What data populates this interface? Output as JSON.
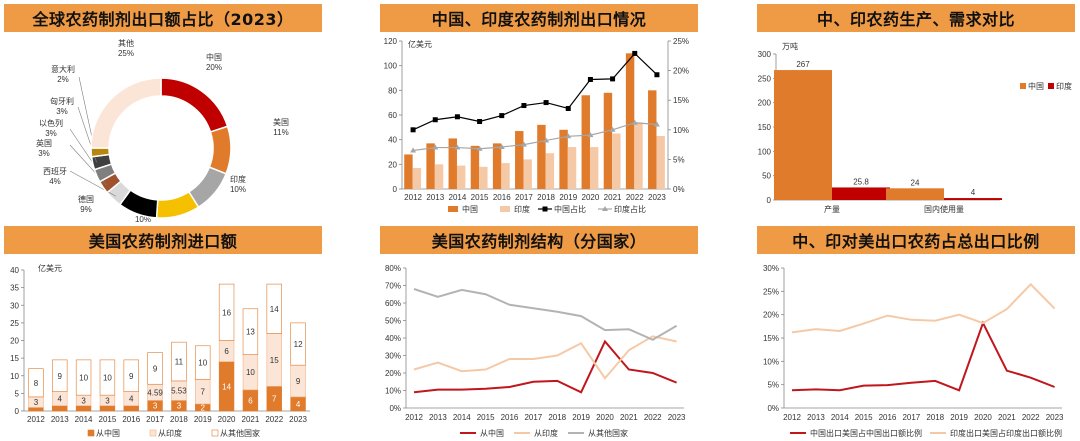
{
  "colors": {
    "china": "#e07b2c",
    "india": "#f6c9a6",
    "red": "#c0161c",
    "gray": "#a6a6a6",
    "banner": "#ef9a45"
  },
  "titles": {
    "p1": "全球农药制剂出口额占比（2023）",
    "p2": "中国、印度农药制剂出口情况",
    "p3": "中、印农药生产、需求对比",
    "p4": "美国农药制剂进口额",
    "p5": "美国农药制剂结构（分国家）",
    "p6": "中、印对美出口农药占总出口比例"
  },
  "chart_data": [
    {
      "id": "p1",
      "type": "pie",
      "title": "全球农药制剂出口额占比（2023）",
      "slices": [
        {
          "name": "中国",
          "value": 20,
          "label": "20%",
          "color": "#c00000"
        },
        {
          "name": "美国",
          "value": 11,
          "label": "11%",
          "color": "#e07b2c"
        },
        {
          "name": "印度",
          "value": 10,
          "label": "10%",
          "color": "#a6a6a6"
        },
        {
          "name": "法国",
          "value": 10,
          "label": "10%",
          "color": "#f5c000"
        },
        {
          "name": "德国",
          "value": 9,
          "label": "9%",
          "color": "#000000"
        },
        {
          "name": "西班牙",
          "value": 4,
          "label": "4%",
          "color": "#d9d9d9"
        },
        {
          "name": "英国",
          "value": 3,
          "label": "3%",
          "color": "#a0522d"
        },
        {
          "name": "以色列",
          "value": 3,
          "label": "3%",
          "color": "#7f7f7f"
        },
        {
          "name": "匈牙利",
          "value": 3,
          "label": "3%",
          "color": "#404040"
        },
        {
          "name": "意大利",
          "value": 2,
          "label": "2%",
          "color": "#b8860b"
        },
        {
          "name": "其他",
          "value": 25,
          "label": "25%",
          "color": "#fbe5d6"
        }
      ]
    },
    {
      "id": "p2",
      "type": "bar",
      "title": "中国、印度农药制剂出口情况",
      "unit": "亿美元",
      "categories": [
        "2012",
        "2013",
        "2014",
        "2015",
        "2016",
        "2017",
        "2018",
        "2019",
        "2020",
        "2021",
        "2022",
        "2023"
      ],
      "ylim": [
        0,
        120
      ],
      "yticks": [
        0,
        20,
        40,
        60,
        80,
        100,
        120
      ],
      "y2lim": [
        0,
        25
      ],
      "y2ticks": [
        "0%",
        "5%",
        "10%",
        "15%",
        "20%",
        "25%"
      ],
      "series": [
        {
          "name": "中国",
          "kind": "bar",
          "values": [
            28,
            37,
            41,
            35,
            37,
            47,
            52,
            48,
            76,
            78,
            110,
            80
          ]
        },
        {
          "name": "印度",
          "kind": "bar",
          "values": [
            17,
            20,
            19,
            18,
            21,
            24,
            29,
            34,
            34,
            45,
            54,
            43
          ]
        },
        {
          "name": "中国占比",
          "kind": "line",
          "axis": "right",
          "values": [
            10.0,
            11.7,
            12.2,
            11.4,
            12.4,
            14.1,
            14.6,
            13.6,
            18.5,
            18.6,
            22.9,
            19.3
          ]
        },
        {
          "name": "印度占比",
          "kind": "line",
          "axis": "right",
          "values": [
            6.5,
            7.0,
            7.0,
            6.8,
            7.1,
            7.5,
            8.2,
            8.9,
            9.1,
            10.0,
            11.2,
            10.9
          ]
        }
      ]
    },
    {
      "id": "p3",
      "type": "bar",
      "title": "中、印农药生产、需求对比",
      "unit": "万吨",
      "categories": [
        "产量",
        "国内使用量"
      ],
      "ylim": [
        0,
        300
      ],
      "yticks": [
        0,
        50,
        100,
        150,
        200,
        250,
        300
      ],
      "series": [
        {
          "name": "中国",
          "values": [
            267,
            24
          ],
          "labels": [
            "267",
            "24"
          ]
        },
        {
          "name": "印度",
          "values": [
            25.8,
            4
          ],
          "labels": [
            "25.8",
            "4"
          ]
        }
      ]
    },
    {
      "id": "p4",
      "type": "bar",
      "stacked": true,
      "title": "美国农药制剂进口额",
      "unit": "亿美元",
      "categories": [
        "2012",
        "2013",
        "2014",
        "2015",
        "2016",
        "2017",
        "2018",
        "2019",
        "2020",
        "2021",
        "2022",
        "2023"
      ],
      "ylim": [
        0,
        40
      ],
      "yticks": [
        0,
        5,
        10,
        15,
        20,
        25,
        30,
        35,
        40
      ],
      "series": [
        {
          "name": "从中国",
          "values": [
            1,
            1.5,
            1.5,
            1.5,
            1.5,
            3,
            3,
            2,
            14,
            6,
            7,
            4
          ],
          "labels": [
            "",
            "",
            "",
            "",
            "",
            "3",
            "3",
            "2",
            "14",
            "6",
            "7",
            "4"
          ]
        },
        {
          "name": "从印度",
          "values": [
            3,
            4,
            3,
            3,
            4,
            4.59,
            5.53,
            7,
            6,
            10,
            15,
            9
          ],
          "labels": [
            "3",
            "4",
            "3",
            "3",
            "4",
            "4.59",
            "5.53",
            "7",
            "6",
            "10",
            "15",
            "9"
          ]
        },
        {
          "name": "从其他国家",
          "values": [
            8,
            9,
            10,
            10,
            9,
            9,
            11,
            9.5,
            16,
            13,
            14,
            12
          ],
          "labels": [
            "8",
            "9",
            "10",
            "10",
            "9",
            "9",
            "11",
            "10",
            "16",
            "13",
            "14",
            "12"
          ]
        }
      ]
    },
    {
      "id": "p5",
      "type": "line",
      "title": "美国农药制剂结构（分国家）",
      "categories": [
        "2012",
        "2013",
        "2014",
        "2015",
        "2016",
        "2017",
        "2018",
        "2019",
        "2020",
        "2021",
        "2022",
        "2023"
      ],
      "ylim": [
        0,
        80
      ],
      "yticks": [
        "0%",
        "10%",
        "20%",
        "30%",
        "40%",
        "50%",
        "60%",
        "70%",
        "80%"
      ],
      "series": [
        {
          "name": "从中国",
          "color": "#c0161c",
          "values": [
            9,
            10.5,
            10.5,
            11,
            12,
            15,
            15.5,
            9,
            38,
            22,
            20,
            14.5
          ]
        },
        {
          "name": "从印度",
          "color": "#f6c9a6",
          "values": [
            22,
            26,
            21,
            22,
            28,
            28,
            30,
            37,
            17,
            33,
            41,
            38
          ]
        },
        {
          "name": "从其他国家",
          "color": "#b3b3b3",
          "values": [
            68,
            63.5,
            67.5,
            65,
            59,
            57,
            55,
            52.5,
            44.5,
            45,
            39,
            47
          ]
        }
      ]
    },
    {
      "id": "p6",
      "type": "line",
      "title": "中、印对美出口农药占总出口比例",
      "categories": [
        "2012",
        "2013",
        "2014",
        "2015",
        "2016",
        "2017",
        "2018",
        "2019",
        "2020",
        "2021",
        "2022",
        "2023"
      ],
      "ylim": [
        0,
        30
      ],
      "yticks": [
        "0%",
        "5%",
        "10%",
        "15%",
        "20%",
        "25%",
        "30%"
      ],
      "series": [
        {
          "name": "中国出口美国占中国出口额比例",
          "color": "#c0161c",
          "values": [
            3.8,
            4.0,
            3.8,
            4.8,
            4.9,
            5.4,
            5.8,
            3.8,
            18.2,
            8.0,
            6.5,
            4.5
          ]
        },
        {
          "name": "印度出口美国占印度出口额比例",
          "color": "#f6c9a6",
          "values": [
            16.2,
            16.9,
            16.5,
            18.1,
            19.8,
            18.9,
            18.7,
            20.0,
            18.2,
            21.2,
            26.5,
            21.3
          ]
        }
      ]
    }
  ]
}
